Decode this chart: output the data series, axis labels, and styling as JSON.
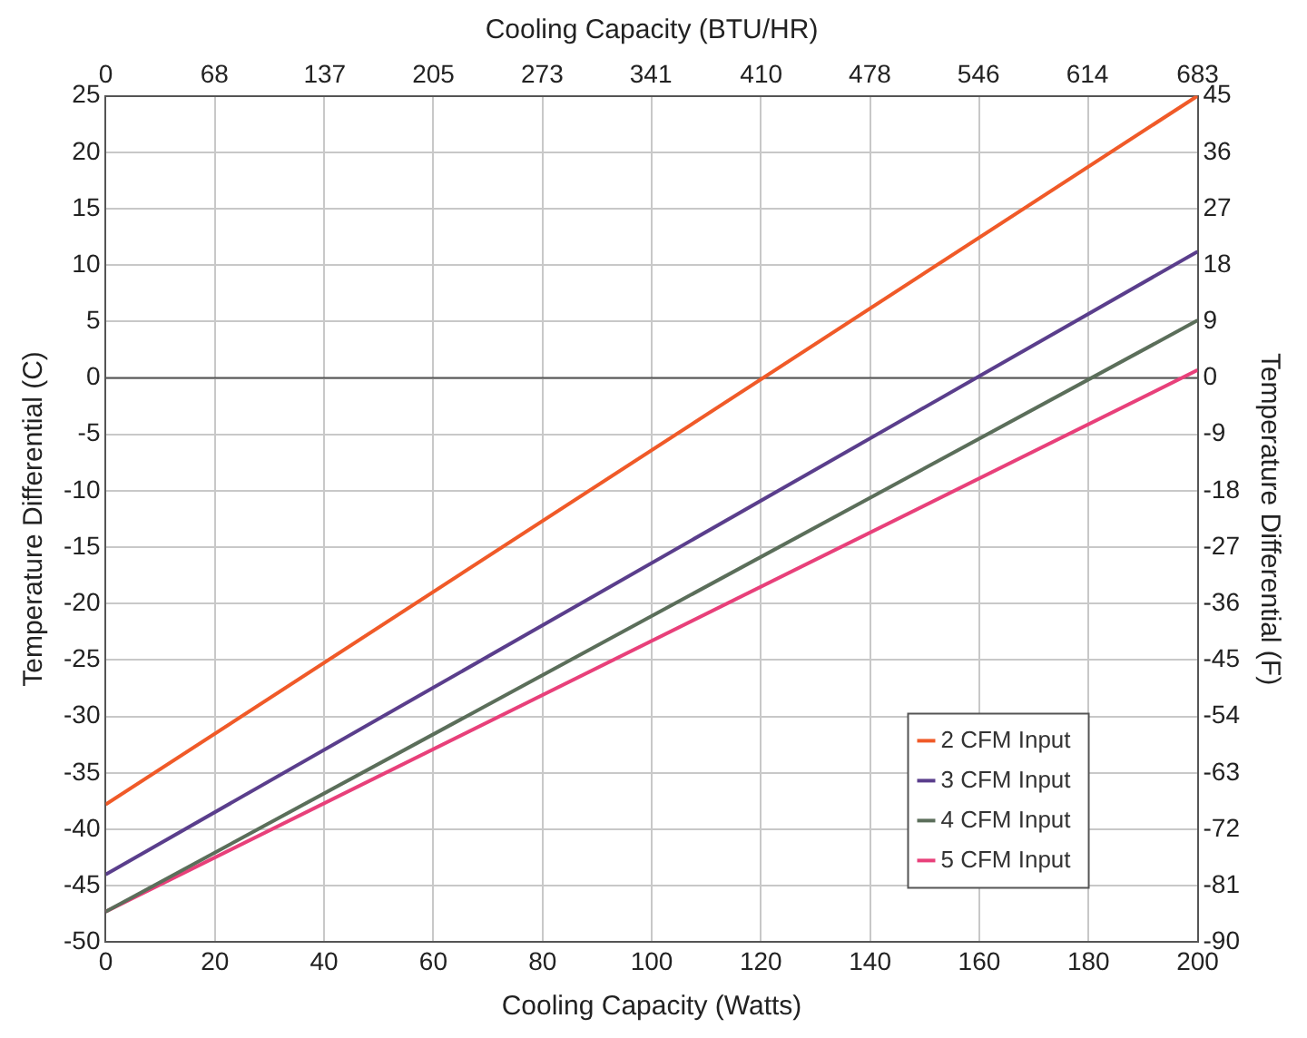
{
  "chart_data": {
    "type": "line",
    "xlabel": "Cooling Capacity (Watts)",
    "x2label": "Cooling Capacity (BTU/HR)",
    "ylabel": "Temperature Differential (C)",
    "y2label": "Temperature Differential (F)",
    "x": [
      0,
      200
    ],
    "series": [
      {
        "name": "2 CFM Input",
        "color": "#f05a28",
        "values": [
          -37.8,
          25
        ]
      },
      {
        "name": "3 CFM Input",
        "color": "#5a3e8c",
        "values": [
          -44,
          11.2
        ]
      },
      {
        "name": "4 CFM Input",
        "color": "#5b6e5a",
        "values": [
          -47.3,
          5.1
        ]
      },
      {
        "name": "5 CFM Input",
        "color": "#e8407a",
        "values": [
          -47.3,
          0.7
        ]
      }
    ],
    "xlim": [
      0,
      200
    ],
    "xticks": [
      0,
      20,
      40,
      60,
      80,
      100,
      120,
      140,
      160,
      180,
      200
    ],
    "x2lim": [
      0,
      683
    ],
    "x2ticks": [
      0,
      68,
      137,
      205,
      273,
      341,
      410,
      478,
      546,
      614,
      683
    ],
    "ylim": [
      -50,
      25
    ],
    "yticks": [
      -50,
      -45,
      -40,
      -35,
      -30,
      -25,
      -20,
      -15,
      -10,
      -5,
      0,
      5,
      10,
      15,
      20,
      25
    ],
    "y2lim": [
      -90,
      45
    ],
    "y2ticks": [
      -90,
      -81,
      -72,
      -63,
      -54,
      -45,
      -36,
      -27,
      -18,
      -9,
      0,
      9,
      18,
      27,
      36,
      45
    ],
    "ref_lines": [
      {
        "axis": "y",
        "value": 0,
        "color": "#555555"
      }
    ],
    "grid": true,
    "legend": "bottom right",
    "marker": "none",
    "line_style": "solid"
  }
}
